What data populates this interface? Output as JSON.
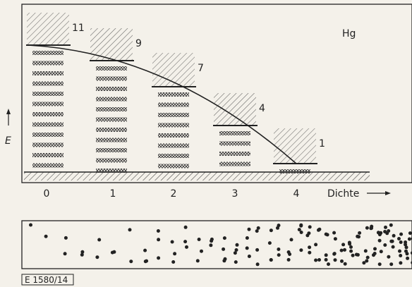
{
  "element": "Hg",
  "energy_label": "E",
  "density_label": "Dichte",
  "density_ticks": [
    "0",
    "1",
    "2",
    "3",
    "4"
  ],
  "columns": [
    {
      "density": "0",
      "count": "11"
    },
    {
      "density": "1",
      "count": "9"
    },
    {
      "density": "2",
      "count": "7"
    },
    {
      "density": "3",
      "count": "4"
    },
    {
      "density": "4",
      "count": "1"
    }
  ],
  "figure_code": "E 1580/14"
}
